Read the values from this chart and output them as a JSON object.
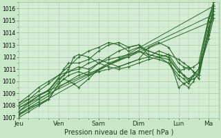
{
  "title": "",
  "xlabel": "Pression niveau de la mer( hPa )",
  "ylabel": "",
  "bg_color": "#c8e8c8",
  "plot_bg_color": "#d4ecd4",
  "grid_color": "#a8cca8",
  "line_color": "#2d6a2d",
  "marker_color": "#2d6a2d",
  "ylim": [
    1007,
    1016.5
  ],
  "yticks": [
    1007,
    1008,
    1009,
    1010,
    1011,
    1012,
    1013,
    1014,
    1015,
    1016
  ],
  "day_labels": [
    "Jeu",
    "Ven",
    "Sam",
    "Dim",
    "Lun",
    "Ma"
  ],
  "day_positions": [
    0,
    24,
    48,
    72,
    96,
    114
  ],
  "total_hours": 120,
  "series": [
    [
      0,
      1007.2,
      6,
      1007.8,
      12,
      1008.1,
      18,
      1008.5,
      24,
      1009.8,
      27,
      1010.2,
      30,
      1010.0,
      33,
      1009.8,
      36,
      1009.5,
      42,
      1010.2,
      48,
      1011.0,
      54,
      1011.5,
      60,
      1011.8,
      66,
      1012.0,
      72,
      1012.5,
      78,
      1012.0,
      84,
      1011.8,
      90,
      1011.5,
      96,
      1010.5,
      99,
      1010.2,
      102,
      1009.8,
      105,
      1010.5,
      108,
      1011.0,
      114,
      1015.0,
      117,
      1016.2
    ],
    [
      0,
      1007.5,
      6,
      1008.0,
      12,
      1008.5,
      18,
      1009.0,
      24,
      1010.0,
      27,
      1010.5,
      30,
      1011.0,
      33,
      1012.0,
      36,
      1012.2,
      42,
      1012.0,
      48,
      1011.5,
      54,
      1011.2,
      60,
      1011.0,
      66,
      1011.2,
      72,
      1011.5,
      78,
      1011.8,
      84,
      1012.0,
      90,
      1012.2,
      96,
      1011.0,
      99,
      1010.5,
      102,
      1010.0,
      105,
      1010.2,
      108,
      1010.5,
      114,
      1014.0,
      117,
      1015.5
    ],
    [
      0,
      1007.8,
      6,
      1008.3,
      12,
      1008.8,
      18,
      1009.3,
      24,
      1010.3,
      27,
      1011.0,
      30,
      1011.5,
      36,
      1011.5,
      42,
      1011.8,
      48,
      1012.5,
      54,
      1013.0,
      60,
      1013.2,
      66,
      1012.8,
      72,
      1013.0,
      78,
      1012.5,
      84,
      1012.2,
      90,
      1012.0,
      96,
      1009.5,
      99,
      1009.8,
      102,
      1010.0,
      105,
      1010.5,
      108,
      1011.0,
      114,
      1013.8,
      117,
      1015.8
    ],
    [
      0,
      1008.0,
      6,
      1008.5,
      12,
      1009.2,
      18,
      1009.8,
      24,
      1010.5,
      30,
      1011.2,
      36,
      1012.0,
      42,
      1012.5,
      48,
      1012.8,
      54,
      1013.2,
      60,
      1013.0,
      66,
      1012.5,
      72,
      1012.8,
      78,
      1012.5,
      84,
      1012.2,
      90,
      1012.0,
      96,
      1010.8,
      99,
      1011.0,
      102,
      1011.2,
      105,
      1010.8,
      108,
      1010.5,
      114,
      1014.5,
      117,
      1016.0
    ],
    [
      0,
      1008.2,
      6,
      1008.8,
      12,
      1009.5,
      18,
      1010.0,
      24,
      1010.5,
      30,
      1010.8,
      36,
      1011.0,
      42,
      1011.5,
      48,
      1011.8,
      54,
      1011.5,
      60,
      1011.2,
      66,
      1011.5,
      72,
      1011.8,
      78,
      1012.8,
      84,
      1013.2,
      90,
      1012.8,
      96,
      1011.5,
      99,
      1011.2,
      102,
      1011.0,
      105,
      1011.2,
      108,
      1011.5,
      114,
      1015.2,
      117,
      1016.5
    ],
    [
      0,
      1007.3,
      6,
      1007.8,
      12,
      1008.3,
      18,
      1008.8,
      24,
      1009.5,
      30,
      1010.0,
      36,
      1010.5,
      42,
      1010.8,
      48,
      1011.5,
      54,
      1012.0,
      60,
      1012.5,
      66,
      1012.8,
      72,
      1013.0,
      78,
      1012.2,
      84,
      1012.0,
      90,
      1011.5,
      96,
      1010.2,
      99,
      1009.8,
      102,
      1009.5,
      105,
      1010.0,
      108,
      1010.8,
      114,
      1013.5,
      117,
      1015.2
    ],
    [
      0,
      1007.0,
      6,
      1007.5,
      12,
      1008.0,
      18,
      1008.5,
      24,
      1009.8,
      30,
      1010.5,
      36,
      1010.8,
      42,
      1010.5,
      48,
      1010.8,
      54,
      1011.0,
      60,
      1011.2,
      66,
      1011.5,
      72,
      1011.8,
      78,
      1012.0,
      84,
      1012.5,
      90,
      1012.2,
      96,
      1011.8,
      99,
      1011.5,
      102,
      1011.2,
      105,
      1010.8,
      108,
      1010.2,
      114,
      1014.2,
      117,
      1016.0
    ],
    [
      0,
      1007.5,
      6,
      1008.2,
      12,
      1008.8,
      18,
      1009.2,
      24,
      1010.2,
      30,
      1010.8,
      36,
      1011.2,
      42,
      1011.0,
      48,
      1011.5,
      54,
      1011.8,
      60,
      1012.0,
      66,
      1012.2,
      72,
      1012.5,
      78,
      1012.2,
      84,
      1012.0,
      90,
      1011.8,
      96,
      1010.8,
      99,
      1010.5,
      102,
      1010.2,
      105,
      1010.5,
      108,
      1011.0,
      114,
      1015.0,
      117,
      1016.3
    ],
    [
      0,
      1007.2,
      117,
      1016.2
    ],
    [
      0,
      1007.8,
      117,
      1015.5
    ],
    [
      0,
      1008.2,
      117,
      1015.0
    ]
  ]
}
